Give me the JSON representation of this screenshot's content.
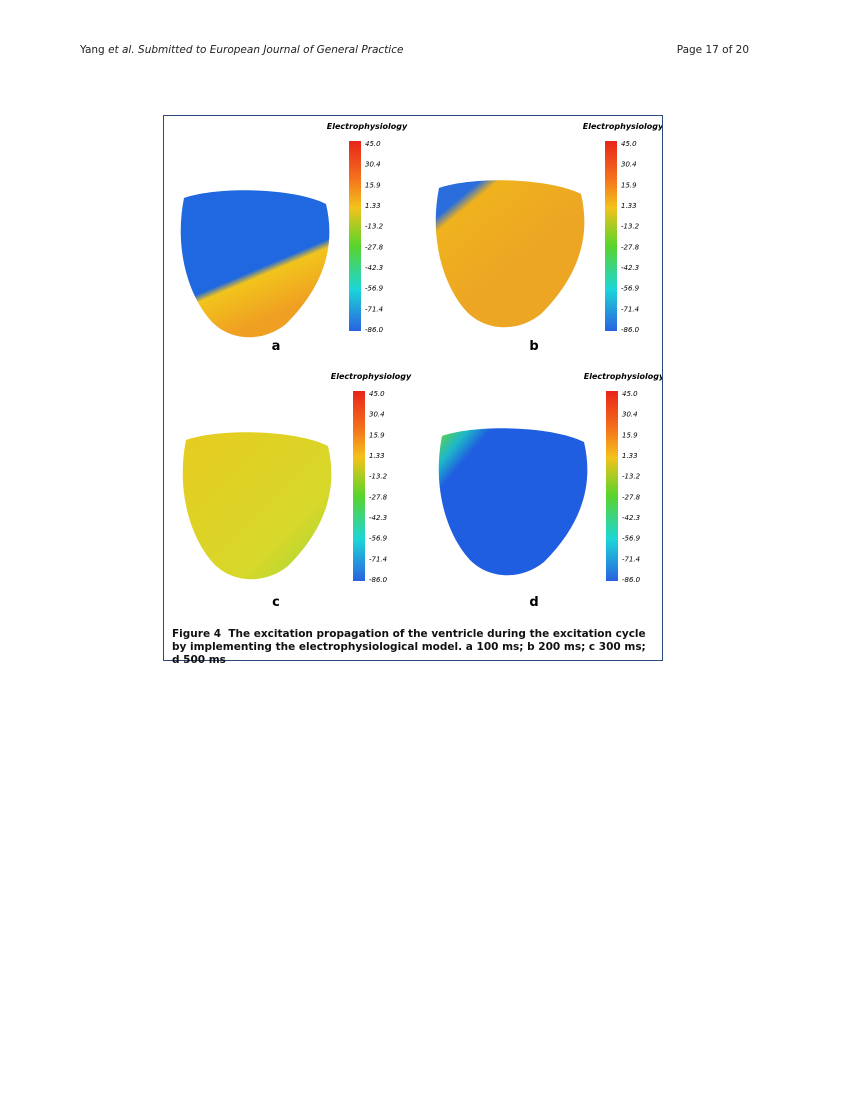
{
  "header": {
    "author": "Yang",
    "etal": "et al.",
    "journal": "Submitted to European Journal of General Practice",
    "page": "Page 17 of 20"
  },
  "figure": {
    "panels": [
      {
        "title": "Electrophysiology",
        "ticks": [
          "45.0",
          "30.4",
          "15.9",
          "1.33",
          "-13.2",
          "-27.8",
          "-42.3",
          "-56.9",
          "-71.4",
          "-86.0"
        ],
        "letter": "a"
      },
      {
        "title": "Electrophysiology",
        "ticks": [
          "45.0",
          "30.4",
          "15.9",
          "1.33",
          "-13.2",
          "-27.8",
          "-42.3",
          "-56.9",
          "-71.4",
          "-86.0"
        ],
        "letter": "b"
      },
      {
        "title": "Electrophysiology",
        "ticks": [
          "45.0",
          "30.4",
          "15.9",
          "1.33",
          "-13.2",
          "-27.8",
          "-42.3",
          "-56.9",
          "-71.4",
          "-86.0"
        ],
        "letter": "c"
      },
      {
        "title": "Electrophysiology",
        "ticks": [
          "45.0",
          "30.4",
          "15.9",
          "1.33",
          "-13.2",
          "-27.8",
          "-42.3",
          "-56.9",
          "-71.4",
          "-86.0"
        ],
        "letter": "d"
      }
    ],
    "caption": {
      "label": "Figure 4",
      "text": "The excitation propagation of the ventricle during the excitation cycle by implementing the electrophysiological model. a 100 ms; b 200 ms; c 300 ms; d 500 ms"
    }
  }
}
